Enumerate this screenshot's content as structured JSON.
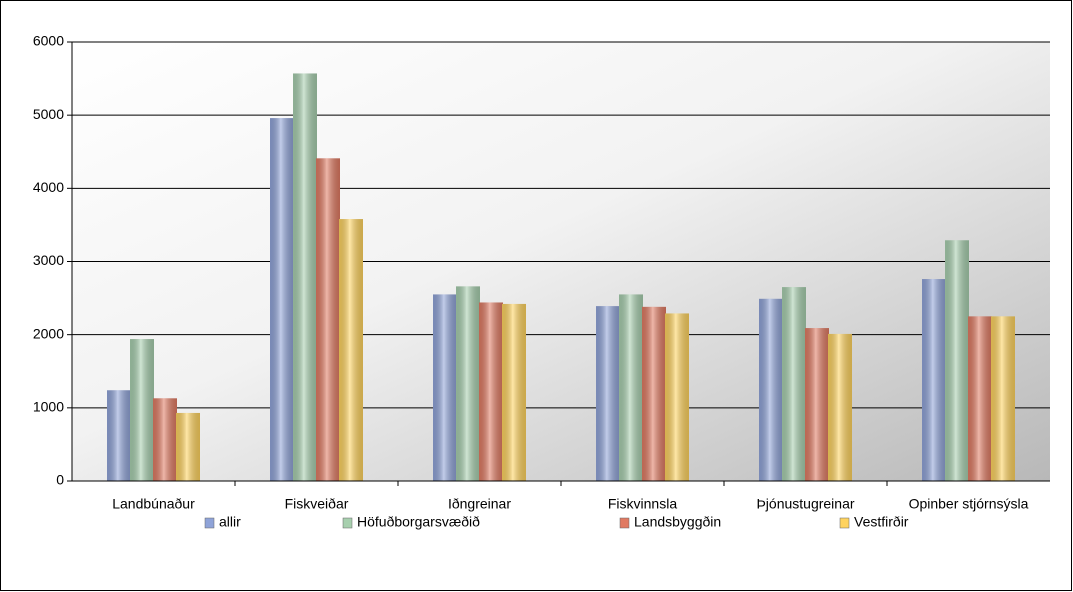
{
  "chart_data": {
    "type": "bar",
    "categories": [
      "Landbúnaður",
      "Fiskveiðar",
      "Iðngreinar",
      "Fiskvinnsla",
      "Þjónustugreinar",
      "Opinber stjórnsýsla"
    ],
    "series": [
      {
        "name": "allir",
        "color": "#8fa3d8",
        "values": [
          1240,
          4960,
          2550,
          2390,
          2490,
          2760
        ]
      },
      {
        "name": "Höfuðborgarsvæðið",
        "color": "#a7cfae",
        "values": [
          1940,
          5570,
          2660,
          2550,
          2650,
          3290
        ]
      },
      {
        "name": "Landsbyggðin",
        "color": "#e07a62",
        "values": [
          1130,
          4410,
          2440,
          2380,
          2090,
          2250
        ]
      },
      {
        "name": "Vestfirðir",
        "color": "#ffd35e",
        "values": [
          930,
          3580,
          2420,
          2290,
          2010,
          2250
        ]
      }
    ],
    "ylim": [
      0,
      6000
    ],
    "yticks": [
      0,
      1000,
      2000,
      3000,
      4000,
      5000,
      6000
    ],
    "grid": true,
    "legend": "bottom"
  }
}
